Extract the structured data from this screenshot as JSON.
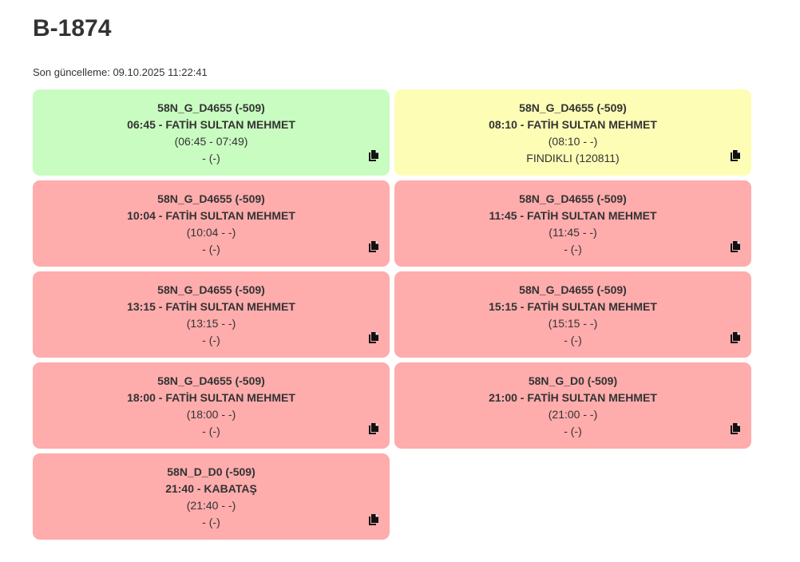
{
  "header": {
    "title": "B-1874",
    "last_updated": "Son güncelleme: 09.10.2025 11:22:41"
  },
  "colors": {
    "green": "#c9fcc0",
    "yellow": "#fdfdb6",
    "red": "#feacac"
  },
  "cards": [
    {
      "status": "green",
      "route": "58N_G_D4655 (-509)",
      "departure": "06:45 - FATİH SULTAN MEHMET",
      "times": "(06:45 - 07:49)",
      "location": "- (-)",
      "icon": "copy-icon"
    },
    {
      "status": "yellow",
      "route": "58N_G_D4655 (-509)",
      "departure": "08:10 - FATİH SULTAN MEHMET",
      "times": "(08:10 - -)",
      "location": "FINDIKLI (120811)",
      "icon": "copy-icon"
    },
    {
      "status": "red",
      "route": "58N_G_D4655 (-509)",
      "departure": "10:04 - FATİH SULTAN MEHMET",
      "times": "(10:04 - -)",
      "location": "- (-)",
      "icon": "copy-icon"
    },
    {
      "status": "red",
      "route": "58N_G_D4655 (-509)",
      "departure": "11:45 - FATİH SULTAN MEHMET",
      "times": "(11:45 - -)",
      "location": "- (-)",
      "icon": "copy-icon"
    },
    {
      "status": "red",
      "route": "58N_G_D4655 (-509)",
      "departure": "13:15 - FATİH SULTAN MEHMET",
      "times": "(13:15 - -)",
      "location": "- (-)",
      "icon": "copy-icon"
    },
    {
      "status": "red",
      "route": "58N_G_D4655 (-509)",
      "departure": "15:15 - FATİH SULTAN MEHMET",
      "times": "(15:15 - -)",
      "location": "- (-)",
      "icon": "copy-icon"
    },
    {
      "status": "red",
      "route": "58N_G_D4655 (-509)",
      "departure": "18:00 - FATİH SULTAN MEHMET",
      "times": "(18:00 - -)",
      "location": "- (-)",
      "icon": "copy-icon"
    },
    {
      "status": "red",
      "route": "58N_G_D0 (-509)",
      "departure": "21:00 - FATİH SULTAN MEHMET",
      "times": "(21:00 - -)",
      "location": "- (-)",
      "icon": "copy-icon"
    },
    {
      "status": "red",
      "route": "58N_D_D0 (-509)",
      "departure": "21:40 - KABATAŞ",
      "times": "(21:40 - -)",
      "location": "- (-)",
      "icon": "copy-icon"
    }
  ]
}
